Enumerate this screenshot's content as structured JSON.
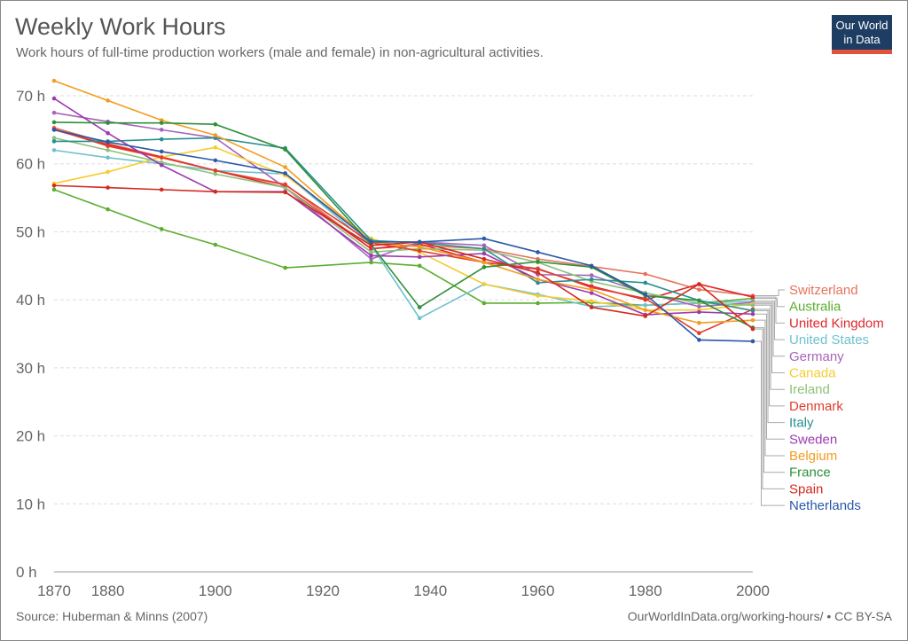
{
  "header": {
    "title": "Weekly Work Hours",
    "subtitle": "Work hours of full-time production workers (male and female) in non-agricultural activities.",
    "logo": "Our World in Data"
  },
  "footer": {
    "source": "Source: Huberman & Minns (2007)",
    "license": "OurWorldInData.org/working-hours/ • CC BY-SA"
  },
  "chart_data": {
    "type": "line",
    "title": "Weekly Work Hours",
    "xlim": [
      1870,
      2000
    ],
    "ylim": [
      0,
      70
    ],
    "x_ticks": [
      1870,
      1880,
      1900,
      1920,
      1940,
      1960,
      1980,
      2000
    ],
    "y_ticks": [
      {
        "v": 0,
        "label": "0 h"
      },
      {
        "v": 10,
        "label": "10 h"
      },
      {
        "v": 20,
        "label": "20 h"
      },
      {
        "v": 30,
        "label": "30 h"
      },
      {
        "v": 40,
        "label": "40 h"
      },
      {
        "v": 50,
        "label": "50 h"
      },
      {
        "v": 60,
        "label": "60 h"
      },
      {
        "v": 70,
        "label": "70 h"
      }
    ],
    "legend": "right",
    "x": [
      1870,
      1880,
      1890,
      1900,
      1913,
      1929,
      1938,
      1950,
      1960,
      1970,
      1980,
      1990,
      2000
    ],
    "series": [
      {
        "name": "Switzerland",
        "color": "#e5735c",
        "values": [
          65.3,
          63,
          61,
          59,
          57,
          47.5,
          48,
          47.5,
          46,
          44.9,
          43.8,
          41.5,
          40.6
        ]
      },
      {
        "name": "Australia",
        "color": "#5bae2f",
        "values": [
          56.2,
          53.3,
          50.4,
          48.1,
          44.7,
          45.5,
          45,
          39.5,
          39.5,
          39.6,
          39.2,
          39.5,
          40.2
        ]
      },
      {
        "name": "United Kingdom",
        "color": "#e0262b",
        "values": [
          65,
          62.8,
          61,
          59,
          56.5,
          47.5,
          48.2,
          45.5,
          44.5,
          42,
          40,
          42.3,
          40.4
        ]
      },
      {
        "name": "United States",
        "color": "#6fc1cf",
        "values": [
          62,
          60.9,
          60,
          59,
          58.5,
          48,
          37.3,
          42.3,
          40.8,
          39,
          39.2,
          39.5,
          39.8
        ]
      },
      {
        "name": "Germany",
        "color": "#a664b8",
        "values": [
          67.5,
          66.2,
          65,
          63.8,
          56.5,
          46,
          48.5,
          48,
          43.7,
          43.6,
          41,
          39,
          39.6
        ]
      },
      {
        "name": "Canada",
        "color": "#f5cc2f",
        "values": [
          57.1,
          58.8,
          61,
          62.4,
          58.3,
          49,
          47,
          42.3,
          40.6,
          39.8,
          38.5,
          38.5,
          39.4
        ]
      },
      {
        "name": "Ireland",
        "color": "#8dc27a",
        "values": [
          63.8,
          62,
          60.2,
          58.5,
          56.5,
          47,
          47.5,
          47.3,
          45.5,
          42.7,
          41,
          39.5,
          39.2
        ]
      },
      {
        "name": "Denmark",
        "color": "#e03d2d",
        "values": [
          65.1,
          62.6,
          60.9,
          59,
          56.9,
          48.4,
          47.2,
          45.5,
          44.6,
          41.8,
          40.2,
          35.1,
          38.6
        ]
      },
      {
        "name": "Italy",
        "color": "#27908f",
        "values": [
          63.3,
          63.3,
          63.6,
          63.8,
          62.3,
          48.7,
          48.4,
          47.5,
          42.5,
          43,
          42.5,
          39.9,
          38.4
        ]
      },
      {
        "name": "Sweden",
        "color": "#9c3bb0",
        "values": [
          69.6,
          64.5,
          59.8,
          55.9,
          55.9,
          46.5,
          46.3,
          46.8,
          43,
          41,
          37.8,
          38.2,
          37.9
        ]
      },
      {
        "name": "Belgium",
        "color": "#f39c20",
        "values": [
          72.2,
          69.3,
          66.4,
          64.2,
          59.5,
          48.5,
          47.8,
          45.5,
          43,
          41.5,
          38.5,
          36.6,
          37
        ]
      },
      {
        "name": "France",
        "color": "#2f8f3a",
        "values": [
          66.1,
          66,
          66,
          65.8,
          62.1,
          48.1,
          38.9,
          44.8,
          45.6,
          44.8,
          40.6,
          39.9,
          35.9
        ]
      },
      {
        "name": "Spain",
        "color": "#d42a1e",
        "values": [
          56.8,
          56.5,
          56.2,
          55.9,
          55.8,
          48,
          48.5,
          46,
          44,
          38.9,
          37.6,
          42.3,
          35.7
        ]
      },
      {
        "name": "Netherlands",
        "color": "#2a59a8",
        "values": [
          65,
          63.2,
          61.8,
          60.5,
          58.6,
          48.5,
          48.5,
          49,
          47,
          45,
          40.8,
          34.1,
          33.9
        ]
      }
    ]
  }
}
